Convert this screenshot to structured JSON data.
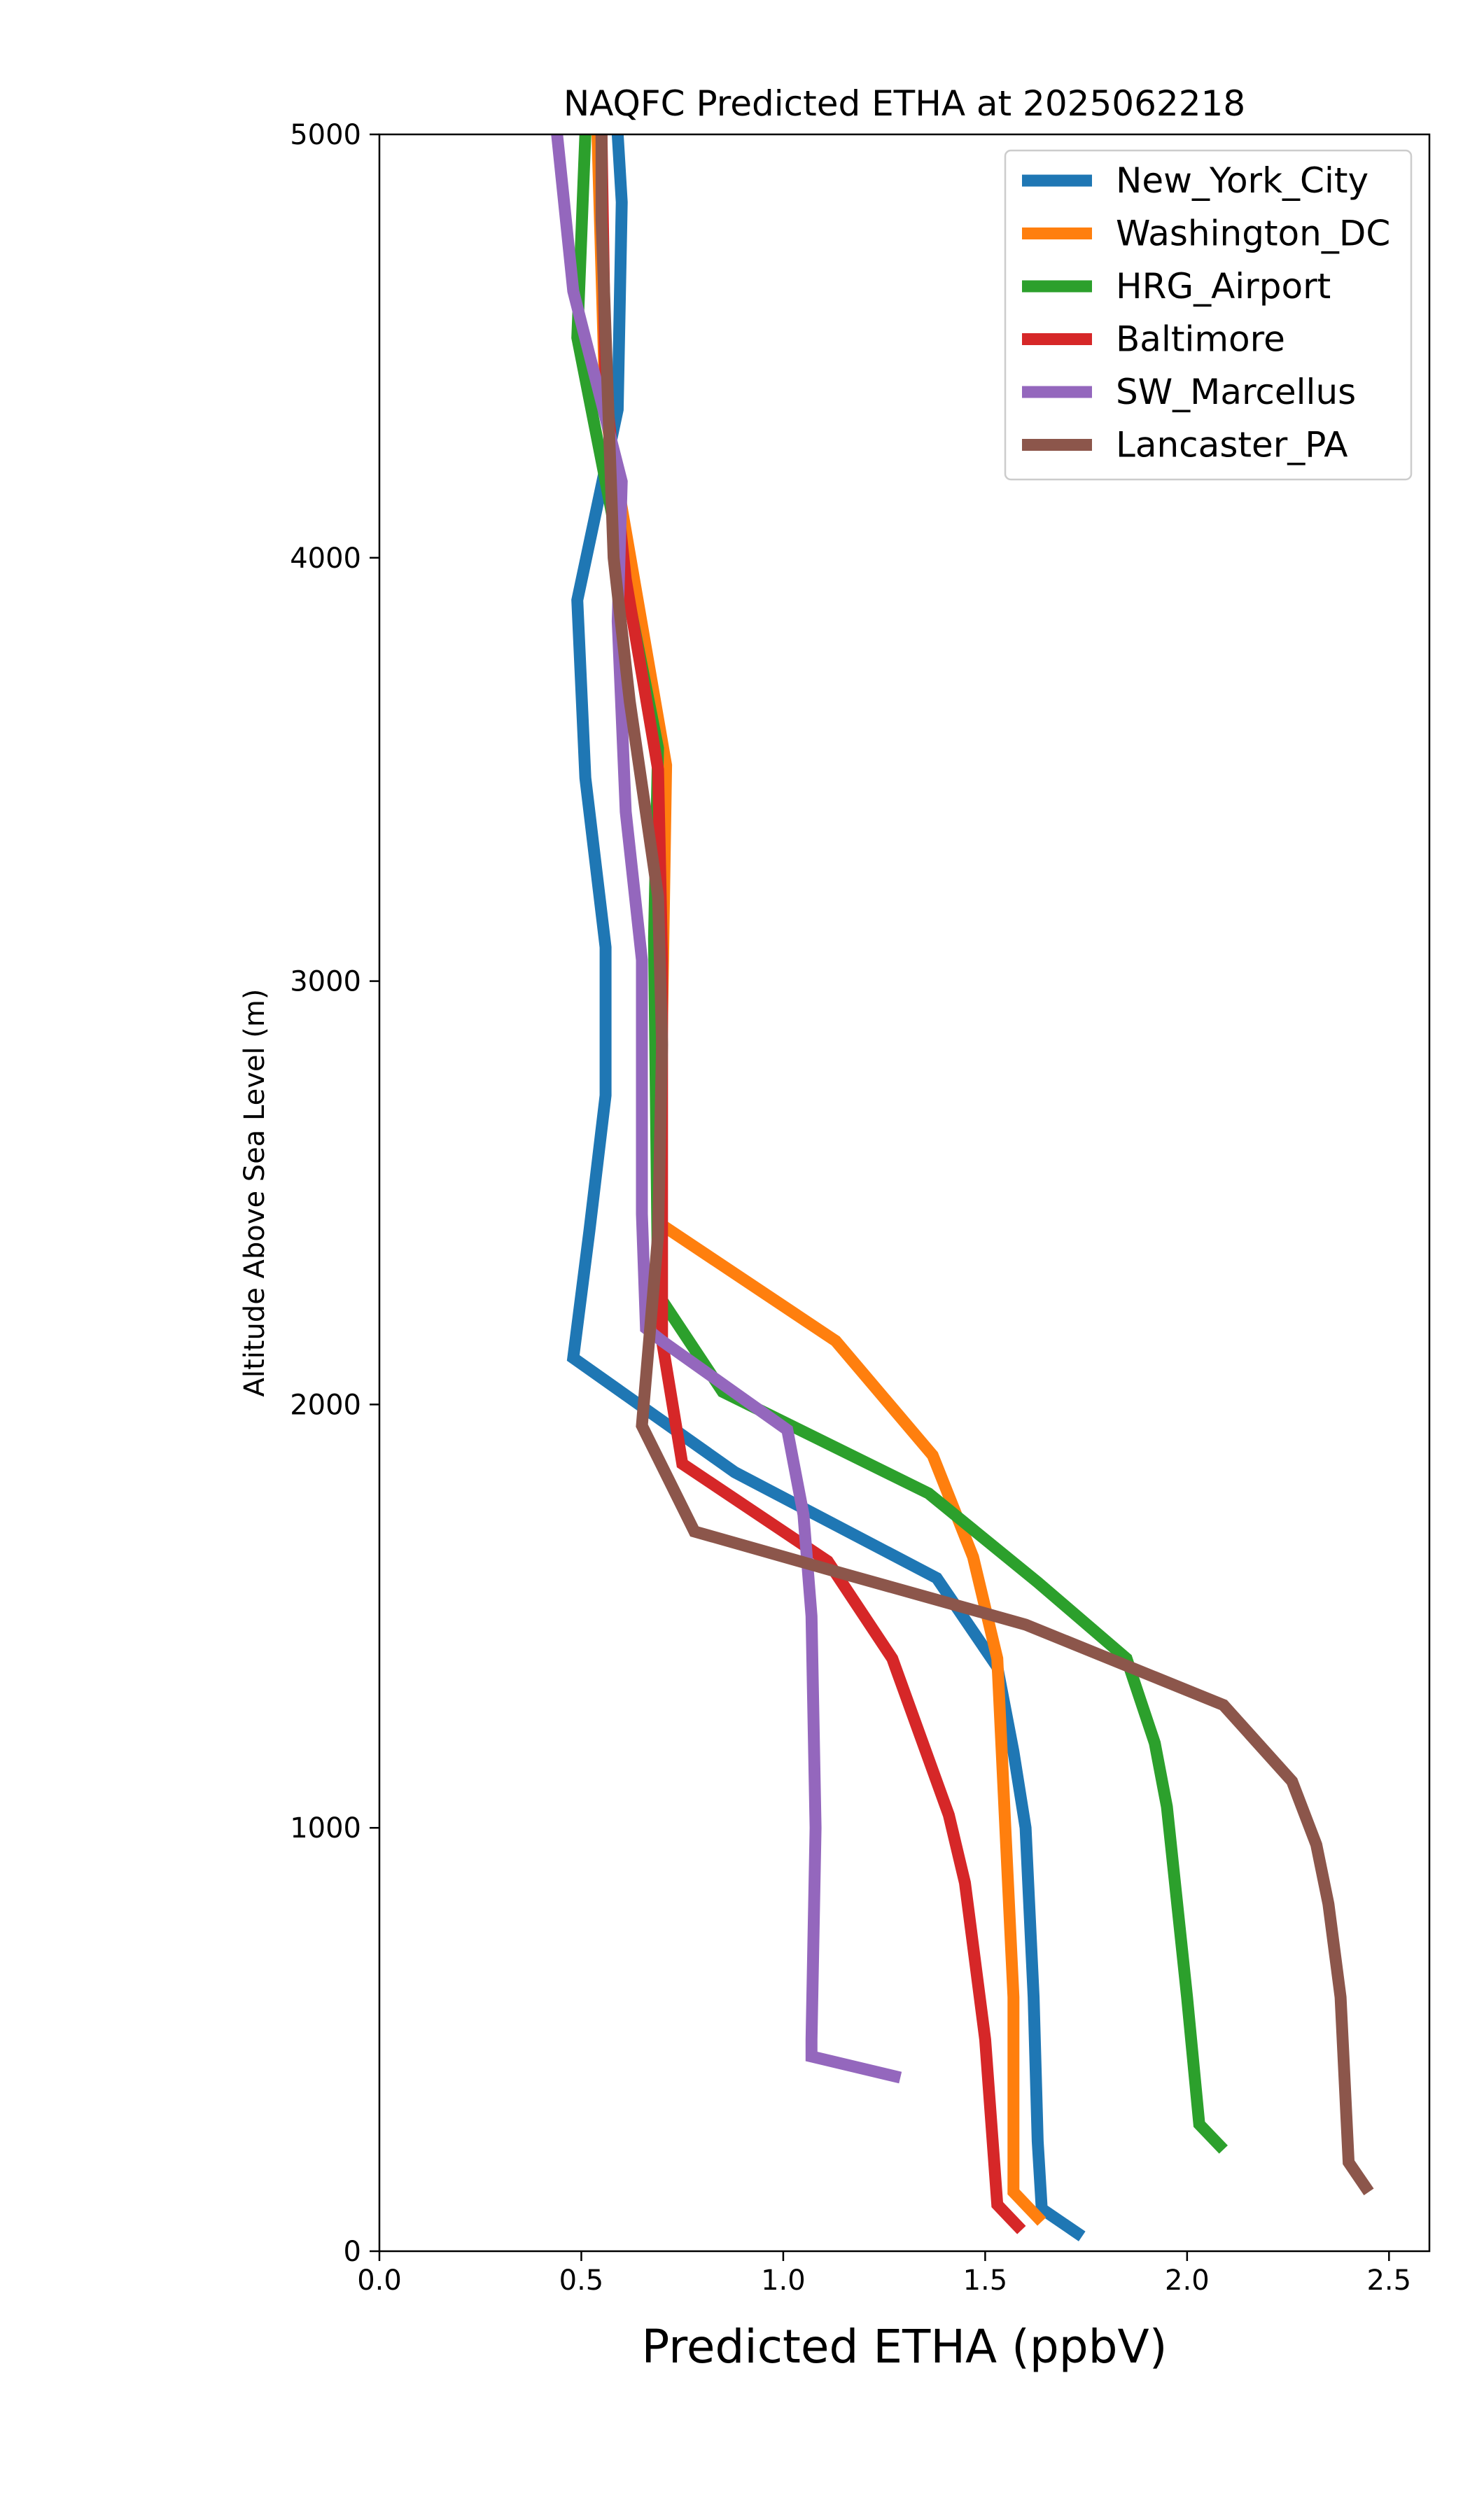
{
  "chart_data": {
    "type": "line",
    "orientation": "vertical-profile",
    "title": "NAQFC Predicted ETHA at 2025062218",
    "xlabel": "Predicted ETHA (ppbV)",
    "ylabel": "Altitude Above Sea Level (m)",
    "xlim": [
      0.0,
      2.6
    ],
    "ylim": [
      0,
      5000
    ],
    "xticks": [
      {
        "value": 0.0,
        "label": "0.0"
      },
      {
        "value": 0.5,
        "label": "0.5"
      },
      {
        "value": 1.0,
        "label": "1.0"
      },
      {
        "value": 1.5,
        "label": "1.5"
      },
      {
        "value": 2.0,
        "label": "2.0"
      },
      {
        "value": 2.5,
        "label": "2.5"
      }
    ],
    "yticks": [
      {
        "value": 0,
        "label": "0"
      },
      {
        "value": 1000,
        "label": "1000"
      },
      {
        "value": 2000,
        "label": "2000"
      },
      {
        "value": 3000,
        "label": "3000"
      },
      {
        "value": 4000,
        "label": "4000"
      },
      {
        "value": 5000,
        "label": "5000"
      }
    ],
    "grid": false,
    "legend_position": "top-right",
    "series": [
      {
        "name": "New_York_City",
        "color": "#1f77b4",
        "points": [
          [
            1.74,
            35
          ],
          [
            1.64,
            100
          ],
          [
            1.63,
            260
          ],
          [
            1.62,
            600
          ],
          [
            1.6,
            1000
          ],
          [
            1.57,
            1180
          ],
          [
            1.53,
            1380
          ],
          [
            1.38,
            1590
          ],
          [
            0.88,
            1840
          ],
          [
            0.48,
            2110
          ],
          [
            0.52,
            2410
          ],
          [
            0.56,
            2730
          ],
          [
            0.56,
            3080
          ],
          [
            0.51,
            3480
          ],
          [
            0.49,
            3900
          ],
          [
            0.59,
            4350
          ],
          [
            0.6,
            4840
          ],
          [
            0.59,
            5000
          ]
        ]
      },
      {
        "name": "Washington_DC",
        "color": "#ff7f0e",
        "points": [
          [
            1.64,
            70
          ],
          [
            1.57,
            140
          ],
          [
            1.57,
            600
          ],
          [
            1.55,
            1000
          ],
          [
            1.53,
            1400
          ],
          [
            1.47,
            1640
          ],
          [
            1.37,
            1880
          ],
          [
            1.13,
            2150
          ],
          [
            0.69,
            2430
          ],
          [
            0.7,
            2900
          ],
          [
            0.71,
            3510
          ],
          [
            0.56,
            4340
          ],
          [
            0.54,
            5000
          ]
        ]
      },
      {
        "name": "HRG_Airport",
        "color": "#2ca02c",
        "points": [
          [
            2.09,
            240
          ],
          [
            2.03,
            300
          ],
          [
            2.0,
            600
          ],
          [
            1.95,
            1050
          ],
          [
            1.92,
            1200
          ],
          [
            1.85,
            1400
          ],
          [
            1.63,
            1580
          ],
          [
            1.36,
            1790
          ],
          [
            0.85,
            2030
          ],
          [
            0.69,
            2260
          ],
          [
            0.68,
            3100
          ],
          [
            0.69,
            3550
          ],
          [
            0.49,
            4520
          ],
          [
            0.51,
            5000
          ]
        ]
      },
      {
        "name": "Baltimore",
        "color": "#d62728",
        "points": [
          [
            1.59,
            50
          ],
          [
            1.53,
            110
          ],
          [
            1.5,
            500
          ],
          [
            1.45,
            870
          ],
          [
            1.41,
            1030
          ],
          [
            1.27,
            1400
          ],
          [
            1.11,
            1630
          ],
          [
            0.75,
            1860
          ],
          [
            0.7,
            2150
          ],
          [
            0.7,
            3050
          ],
          [
            0.69,
            3500
          ],
          [
            0.61,
            3950
          ],
          [
            0.56,
            4400
          ],
          [
            0.55,
            5000
          ]
        ]
      },
      {
        "name": "SW_Marcellus",
        "color": "#9467bd",
        "points": [
          [
            1.29,
            410
          ],
          [
            1.07,
            460
          ],
          [
            1.07,
            500
          ],
          [
            1.08,
            1000
          ],
          [
            1.07,
            1500
          ],
          [
            1.05,
            1740
          ],
          [
            1.01,
            1940
          ],
          [
            0.7,
            2150
          ],
          [
            0.66,
            2180
          ],
          [
            0.65,
            2450
          ],
          [
            0.65,
            3050
          ],
          [
            0.61,
            3400
          ],
          [
            0.59,
            3850
          ],
          [
            0.6,
            4180
          ],
          [
            0.48,
            4630
          ],
          [
            0.44,
            5000
          ]
        ]
      },
      {
        "name": "Lancaster_PA",
        "color": "#8c564b",
        "points": [
          [
            2.45,
            140
          ],
          [
            2.4,
            210
          ],
          [
            2.38,
            600
          ],
          [
            2.35,
            820
          ],
          [
            2.32,
            960
          ],
          [
            2.26,
            1110
          ],
          [
            2.09,
            1290
          ],
          [
            1.6,
            1480
          ],
          [
            1.15,
            1600
          ],
          [
            0.78,
            1700
          ],
          [
            0.65,
            1950
          ],
          [
            0.69,
            2400
          ],
          [
            0.7,
            2850
          ],
          [
            0.69,
            3200
          ],
          [
            0.62,
            3660
          ],
          [
            0.58,
            4000
          ],
          [
            0.55,
            4800
          ],
          [
            0.55,
            5000
          ]
        ]
      }
    ]
  }
}
